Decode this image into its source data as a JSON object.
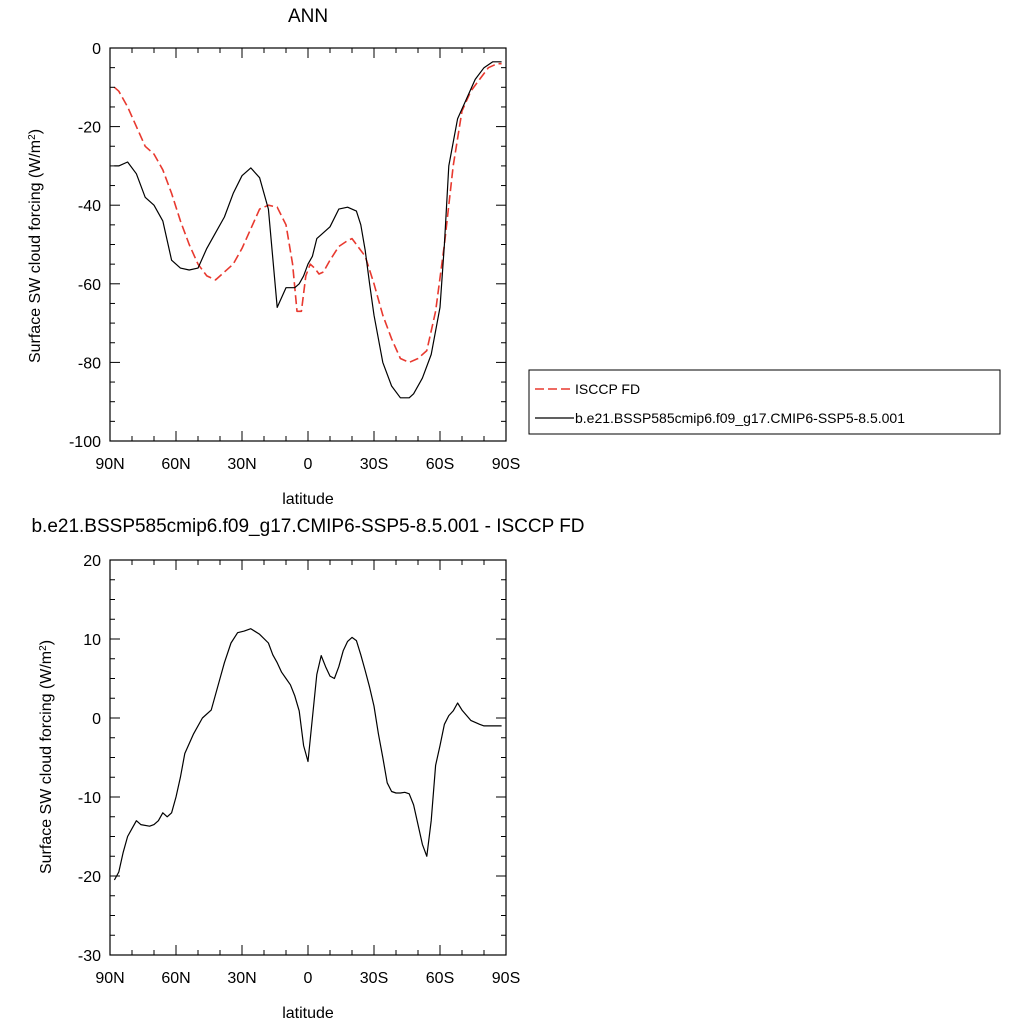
{
  "chart_data": [
    {
      "type": "line",
      "title": "ANN",
      "xlabel": "latitude",
      "ylabel": "Surface SW cloud forcing (W/m",
      "ylabel_superscript": "2",
      "ylabel_suffix": ")",
      "xlim": [
        90,
        -90
      ],
      "ylim": [
        -100,
        0
      ],
      "x_ticks": [
        90,
        60,
        30,
        0,
        -30,
        -60,
        -90
      ],
      "x_tick_labels": [
        "90N",
        "60N",
        "30N",
        "0",
        "30S",
        "60S",
        "90S"
      ],
      "y_ticks": [
        0,
        -20,
        -40,
        -60,
        -80,
        -100
      ],
      "y_tick_labels": [
        "0",
        "-20",
        "-40",
        "-60",
        "-80",
        "-100"
      ],
      "grid": false,
      "legend_position": "right",
      "series": [
        {
          "name": "ISCCP FD",
          "color": "#e8392f",
          "dash": "dashed",
          "x": [
            88,
            86,
            82,
            78,
            74,
            70,
            66,
            62,
            58,
            54,
            50,
            46,
            42,
            38,
            34,
            30,
            26,
            22,
            18,
            14,
            10,
            7,
            5,
            3,
            1,
            -1,
            -3,
            -5,
            -7,
            -10,
            -14,
            -18,
            -20,
            -22,
            -26,
            -30,
            -34,
            -38,
            -42,
            -46,
            -50,
            -54,
            -58,
            -62,
            -66,
            -70,
            -74,
            -78,
            -82,
            -86,
            -88
          ],
          "y": [
            -10,
            -11,
            -15,
            -20,
            -25,
            -27,
            -31,
            -37,
            -44,
            -50,
            -55,
            -58,
            -59,
            -57,
            -55,
            -51,
            -46,
            -41,
            -40,
            -40.5,
            -45,
            -55,
            -67,
            -67,
            -58,
            -55,
            -56,
            -57.5,
            -57,
            -54,
            -50.5,
            -49,
            -48.5,
            -50,
            -53,
            -60,
            -68,
            -74,
            -79,
            -80,
            -79,
            -77,
            -67,
            -50,
            -30,
            -16,
            -11,
            -8,
            -5,
            -4,
            -4
          ]
        },
        {
          "name": "b.e21.BSSP585cmip6.f09_g17.CMIP6-SSP5-8.5.001",
          "color": "#000000",
          "dash": "solid",
          "x": [
            88,
            86,
            82,
            78,
            74,
            70,
            66,
            62,
            58,
            54,
            50,
            46,
            42,
            38,
            34,
            30,
            26,
            22,
            18,
            14,
            10,
            6,
            4,
            2,
            0,
            -2,
            -4,
            -6,
            -10,
            -14,
            -18,
            -22,
            -24,
            -26,
            -28,
            -30,
            -34,
            -38,
            -42,
            -46,
            -48,
            -52,
            -56,
            -60,
            -62,
            -64,
            -68,
            -72,
            -76,
            -80,
            -84,
            -88
          ],
          "y": [
            -30,
            -30,
            -29,
            -32,
            -38,
            -40,
            -44,
            -54,
            -56,
            -56.5,
            -56,
            -51,
            -47,
            -43,
            -37,
            -32.5,
            -30.5,
            -33,
            -41,
            -66,
            -61,
            -61,
            -60,
            -58,
            -55,
            -53,
            -48.5,
            -47.5,
            -45.5,
            -41,
            -40.5,
            -41.5,
            -45,
            -51.5,
            -60,
            -68,
            -80,
            -86,
            -89,
            -89,
            -88,
            -84,
            -78,
            -66,
            -50,
            -30,
            -18,
            -13,
            -8,
            -5,
            -3.5,
            -3.5
          ]
        }
      ]
    },
    {
      "type": "line",
      "title": "b.e21.BSSP585cmip6.f09_g17.CMIP6-SSP5-8.5.001 - ISCCP FD",
      "xlabel": "latitude",
      "ylabel": "Surface SW cloud forcing (W/m",
      "ylabel_superscript": "2",
      "ylabel_suffix": ")",
      "xlim": [
        90,
        -90
      ],
      "ylim": [
        -30,
        20
      ],
      "x_ticks": [
        90,
        60,
        30,
        0,
        -30,
        -60,
        -90
      ],
      "x_tick_labels": [
        "90N",
        "60N",
        "30N",
        "0",
        "30S",
        "60S",
        "90S"
      ],
      "y_ticks": [
        20,
        10,
        0,
        -10,
        -20,
        -30
      ],
      "y_tick_labels": [
        "20",
        "10",
        "0",
        "-10",
        "-20",
        "-30"
      ],
      "grid": false,
      "series": [
        {
          "name": "",
          "color": "#000000",
          "dash": "solid",
          "x": [
            88,
            86,
            84,
            82,
            80,
            78,
            76,
            72,
            70,
            68,
            66,
            64,
            62,
            60,
            58,
            56,
            52,
            48,
            44,
            40,
            38,
            35,
            32,
            29,
            26,
            22,
            18,
            16,
            14,
            12,
            10,
            8,
            6,
            4,
            2,
            0,
            -4,
            -6,
            -8,
            -10,
            -12,
            -14,
            -16,
            -18,
            -20,
            -22,
            -24,
            -26,
            -28,
            -30,
            -32,
            -34,
            -36,
            -38,
            -40,
            -42,
            -44,
            -46,
            -48,
            -50,
            -52,
            -54,
            -56,
            -58,
            -60,
            -62,
            -64,
            -66,
            -68,
            -70,
            -74,
            -78,
            -80,
            -82,
            -86,
            -88
          ],
          "y": [
            -20.5,
            -19.5,
            -17,
            -15,
            -14,
            -13,
            -13.5,
            -13.7,
            -13.5,
            -13,
            -12,
            -12.5,
            -12,
            -10,
            -7.5,
            -4.5,
            -2,
            0,
            1,
            5,
            7,
            9.5,
            10.8,
            11,
            11.3,
            10.6,
            9.5,
            8,
            7,
            5.8,
            5,
            4.2,
            2.8,
            0.9,
            -3.5,
            -5.5,
            5.5,
            7.9,
            6.5,
            5.3,
            5.0,
            6.5,
            8.5,
            9.7,
            10.2,
            9.8,
            8,
            6,
            3.9,
            1.5,
            -2,
            -5,
            -8.2,
            -9.3,
            -9.5,
            -9.5,
            -9.4,
            -9.6,
            -11,
            -13.5,
            -16,
            -17.5,
            -13,
            -6,
            -3.5,
            -0.8,
            0.3,
            0.9,
            1.9,
            1,
            -0.3,
            -0.8,
            -1,
            -1,
            -1,
            -1
          ]
        }
      ]
    }
  ]
}
